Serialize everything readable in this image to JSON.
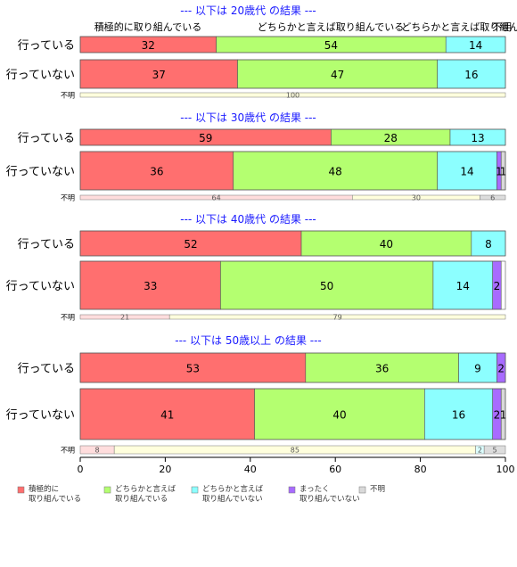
{
  "chart_data": {
    "type": "bar",
    "orientation": "horizontal",
    "stacked": true,
    "xlim": [
      0,
      100
    ],
    "x_ticks": [
      "0",
      "20",
      "40",
      "60",
      "80",
      "100"
    ],
    "legend_position": "bottom",
    "top_category_labels": [
      "積極的に取り組んでいる",
      "どちらかと言えば取り組んでいる",
      "どちらかと言えば取り組んでいない",
      "不明"
    ],
    "series": [
      {
        "name": "積極的に 取り組んでいる",
        "label_lines": [
          "積極的に",
          "取り組んでいる"
        ],
        "color": "#ff6f6f"
      },
      {
        "name": "どちらかと言えば 取り組んでいる",
        "label_lines": [
          "どちらかと言えば",
          "取り組んでいる"
        ],
        "color": "#b4ff70"
      },
      {
        "name": "どちらかと言えば 取り組んでいない",
        "label_lines": [
          "どちらかと言えば",
          "取り組んでいない"
        ],
        "color": "#8cffff"
      },
      {
        "name": "まったく 取り組んでいない",
        "label_lines": [
          "まったく",
          "取り組んでいない"
        ],
        "color": "#a86bff"
      },
      {
        "name": "不明",
        "label_lines": [
          "不明"
        ],
        "color": "#d9d9d9"
      }
    ],
    "panels": [
      {
        "title": "--- 以下は 20歳代 の結果 ---",
        "rows": [
          {
            "category": "行っている",
            "values": [
              32,
              54,
              14,
              0,
              0
            ]
          },
          {
            "category": "行っていない",
            "values": [
              37,
              47,
              16,
              0,
              0
            ]
          }
        ],
        "unknown_row": {
          "category": "不明",
          "values": [
            100
          ],
          "colors": [
            "#ffffdd"
          ]
        }
      },
      {
        "title": "--- 以下は 30歳代 の結果 ---",
        "rows": [
          {
            "category": "行っている",
            "values": [
              59,
              28,
              13,
              0,
              0
            ]
          },
          {
            "category": "行っていない",
            "values": [
              36,
              48,
              14,
              1,
              1
            ]
          }
        ],
        "unknown_row": {
          "category": "不明",
          "values": [
            64,
            30,
            6
          ],
          "colors": [
            "#ffdddd",
            "#ffffdd",
            "#dddddd"
          ]
        }
      },
      {
        "title": "--- 以下は 40歳代 の結果 ---",
        "rows": [
          {
            "category": "行っている",
            "values": [
              52,
              40,
              8,
              0,
              0
            ]
          },
          {
            "category": "行っていない",
            "values": [
              33,
              50,
              14,
              2,
              0
            ]
          }
        ],
        "unknown_row": {
          "category": "不明",
          "values": [
            21,
            79
          ],
          "colors": [
            "#ffdddd",
            "#ffffdd"
          ]
        }
      },
      {
        "title": "--- 以下は 50歳以上 の結果 ---",
        "rows": [
          {
            "category": "行っている",
            "values": [
              53,
              36,
              9,
              2,
              0
            ]
          },
          {
            "category": "行っていない",
            "values": [
              41,
              40,
              16,
              2,
              1
            ]
          }
        ],
        "unknown_row": {
          "category": "不明",
          "values": [
            8,
            85,
            2,
            5
          ],
          "colors": [
            "#ffdddd",
            "#ffffdd",
            "#ddffff",
            "#dddddd"
          ]
        }
      }
    ]
  }
}
